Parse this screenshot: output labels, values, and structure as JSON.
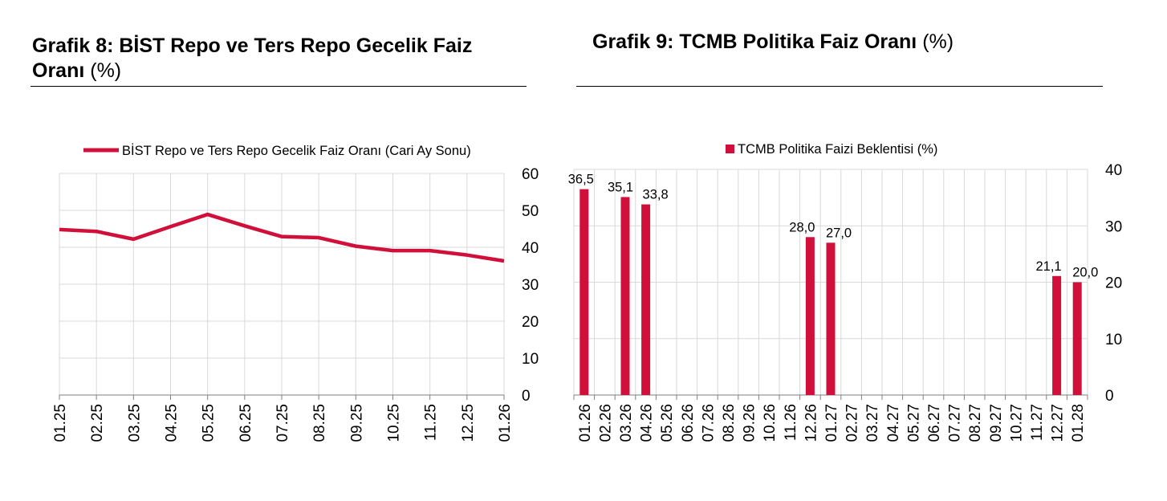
{
  "left_panel": {
    "title_bold": "Grafik 8:  BİST Repo ve Ters Repo Gecelik Faiz",
    "title_bold_2": "Oranı",
    "title_unit": "(%)"
  },
  "right_panel": {
    "title_bold": "Grafik 9: TCMB Politika Faiz Oranı",
    "title_unit": "(%)"
  },
  "chart_data": [
    {
      "type": "line",
      "title": "Grafik 8: BİST Repo ve Ters Repo Gecelik Faiz Oranı (%)",
      "legend": "BİST Repo ve Ters Repo Gecelik Faiz Oranı (Cari Ay Sonu)",
      "color": "#d0103a",
      "categories": [
        "01.25",
        "02.25",
        "03.25",
        "04.25",
        "05.25",
        "06.25",
        "07.25",
        "08.25",
        "09.25",
        "10.25",
        "11.25",
        "12.25",
        "01.26"
      ],
      "values": [
        44.8,
        44.3,
        42.2,
        45.6,
        48.9,
        45.8,
        42.9,
        42.6,
        40.3,
        39.1,
        39.1,
        37.9,
        36.3
      ],
      "yticks": [
        "0",
        "10",
        "20",
        "30",
        "40",
        "50",
        "60"
      ],
      "ylim": [
        0,
        60
      ],
      "y_axis_side": "right",
      "grid": true
    },
    {
      "type": "bar",
      "title": "Grafik 9: TCMB Politika Faiz Oranı (%)",
      "legend": "TCMB Politika Faizi Beklentisi (%)",
      "color": "#d0103a",
      "categories": [
        "01.26",
        "02.26",
        "03.26",
        "04.26",
        "05.26",
        "06.26",
        "07.26",
        "08.26",
        "09.26",
        "10.26",
        "11.26",
        "12.26",
        "01.27",
        "02.27",
        "03.27",
        "04.27",
        "05.27",
        "06.27",
        "07.27",
        "08.27",
        "09.27",
        "10.27",
        "11.27",
        "12.27",
        "01.28"
      ],
      "values": [
        36.5,
        null,
        35.1,
        33.8,
        null,
        null,
        null,
        null,
        null,
        null,
        null,
        28.0,
        27.0,
        null,
        null,
        null,
        null,
        null,
        null,
        null,
        null,
        null,
        null,
        21.1,
        20.0
      ],
      "data_labels": [
        "36,5",
        "",
        "35,1",
        "33,8",
        "",
        "",
        "",
        "",
        "",
        "",
        "",
        "28,0",
        "27,0",
        "",
        "",
        "",
        "",
        "",
        "",
        "",
        "",
        "",
        "",
        "21,1",
        "20,0"
      ],
      "yticks": [
        "0",
        "10",
        "20",
        "30",
        "40"
      ],
      "ylim": [
        0,
        40
      ],
      "y_axis_side": "right",
      "grid": true
    }
  ]
}
